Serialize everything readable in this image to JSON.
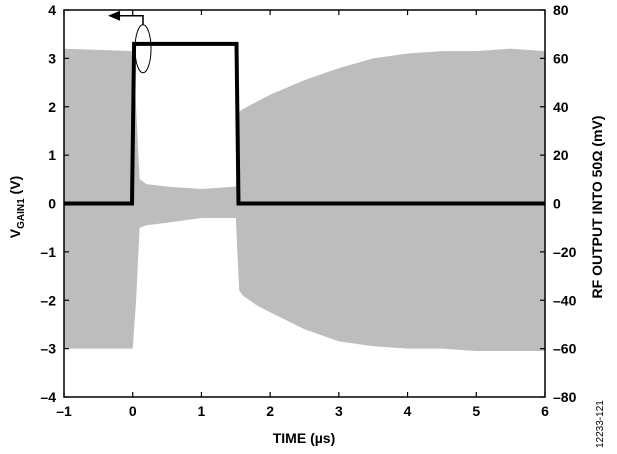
{
  "chart_data": {
    "type": "line",
    "xlabel": "TIME (µs)",
    "ylabel_left_main": "V",
    "ylabel_left_sub": "GAIN1",
    "ylabel_left_unit": " (V)",
    "ylabel_right": "RF OUTPUT INTO 50Ω (mV)",
    "figure_id": "12233-121",
    "xlim": [
      -1,
      6
    ],
    "ylim_left": [
      -4,
      4
    ],
    "ylim_right": [
      -80,
      80
    ],
    "x_ticks": [
      "–1",
      "0",
      "1",
      "2",
      "3",
      "4",
      "5",
      "6"
    ],
    "x_tick_values": [
      -1,
      0,
      1,
      2,
      3,
      4,
      5,
      6
    ],
    "y_left_ticks": [
      "4",
      "3",
      "2",
      "1",
      "0",
      "–1",
      "–2",
      "–3",
      "–4"
    ],
    "y_left_tick_values": [
      4,
      3,
      2,
      1,
      0,
      -1,
      -2,
      -3,
      -4
    ],
    "y_right_ticks": [
      "80",
      "60",
      "40",
      "20",
      "0",
      "–20",
      "–40",
      "–60",
      "–80"
    ],
    "y_right_tick_values": [
      80,
      60,
      40,
      20,
      0,
      -20,
      -40,
      -60,
      -80
    ],
    "grid": false,
    "colors": {
      "vgain": "#000000",
      "rf_envelope": "#bdbdbd"
    },
    "series": [
      {
        "axis": "left",
        "x": [
          -1,
          -0.01,
          0.02,
          0.03,
          1.5,
          1.51,
          1.54,
          6
        ],
        "y": [
          0,
          0,
          3.3,
          3.3,
          3.3,
          3.3,
          0,
          0
        ]
      },
      {
        "axis": "right",
        "envelope_x": [
          -1,
          0,
          0.05,
          0.1,
          0.2,
          0.5,
          1.0,
          1.5,
          1.55,
          1.6,
          1.8,
          2.0,
          2.5,
          3.0,
          3.5,
          4.0,
          4.5,
          5.0,
          5.5,
          6
        ],
        "envelope_upper": [
          64,
          63,
          40,
          10,
          8,
          7,
          6,
          7,
          38,
          39,
          42,
          45,
          51,
          56,
          60,
          62,
          63,
          63,
          64,
          63
        ],
        "envelope_lower": [
          -60,
          -60,
          -40,
          -10,
          -9,
          -8,
          -6,
          -6,
          -36,
          -38,
          -42,
          -45,
          -52,
          -57,
          -59,
          -60,
          -60,
          -61,
          -61,
          -61
        ]
      }
    ],
    "annotations": [
      {
        "type": "axis-indicator",
        "target_axis": "left",
        "at_x": 0.15,
        "at_y": 3.2
      }
    ]
  }
}
